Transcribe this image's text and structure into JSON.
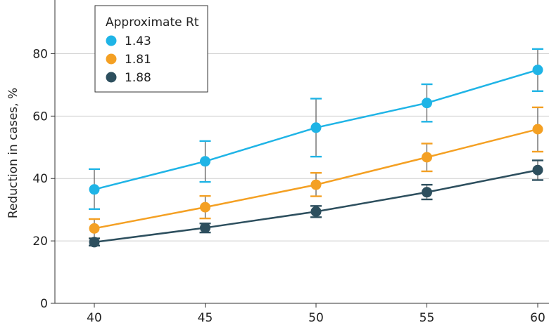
{
  "chart_data": {
    "type": "line",
    "xlabel": "",
    "ylabel": "Reduction in cases, %",
    "x": [
      40,
      45,
      50,
      55,
      60
    ],
    "xticks": [
      "40",
      "45",
      "50",
      "55",
      "60"
    ],
    "ylim": [
      0,
      90
    ],
    "yticks": [
      "0",
      "20",
      "40",
      "60",
      "80"
    ],
    "grid": "horizontal",
    "legend": {
      "title": "Approximate Rt",
      "position": "top-left"
    },
    "series": [
      {
        "name": "1.43",
        "color": "#1fb4e6",
        "values": [
          36.5,
          45.5,
          56.3,
          64.2,
          74.8
        ],
        "err_low": [
          30.2,
          38.9,
          47.0,
          58.2,
          68.0
        ],
        "err_high": [
          43.0,
          52.0,
          65.6,
          70.2,
          81.5
        ]
      },
      {
        "name": "1.81",
        "color": "#f4a023",
        "values": [
          24.0,
          30.8,
          38.0,
          46.8,
          55.8
        ],
        "err_low": [
          20.8,
          27.2,
          34.3,
          42.3,
          48.6
        ],
        "err_high": [
          27.0,
          34.4,
          41.8,
          51.2,
          62.8
        ]
      },
      {
        "name": "1.88",
        "color": "#2d4f5e",
        "values": [
          19.6,
          24.2,
          29.4,
          35.6,
          42.7
        ],
        "err_low": [
          18.5,
          22.7,
          27.6,
          33.3,
          39.5
        ],
        "err_high": [
          20.8,
          25.6,
          31.2,
          38.0,
          45.8
        ]
      }
    ]
  }
}
